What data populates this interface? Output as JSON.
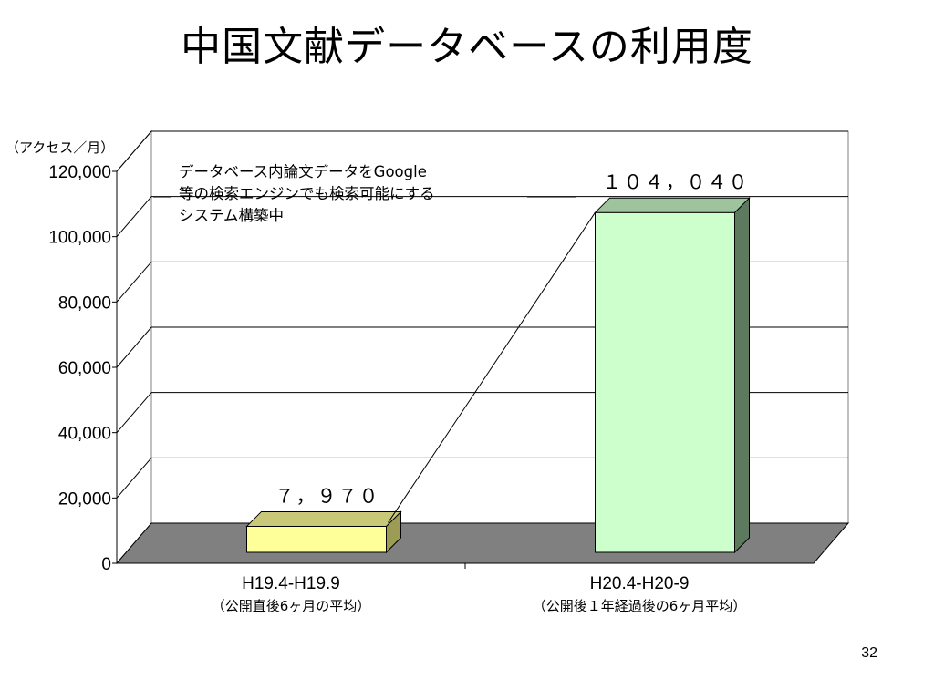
{
  "slide": {
    "title": "中国文献データベースの利用度",
    "page_number": "32"
  },
  "chart_data": {
    "type": "bar",
    "unit_label": "（アクセス／月）",
    "ylim": [
      0,
      120000
    ],
    "yticks": [
      "0",
      "20,000",
      "40,000",
      "60,000",
      "80,000",
      "100,000",
      "120,000"
    ],
    "categories": [
      "H19.4-H19.9",
      "H20.4-H20-9"
    ],
    "category_notes": [
      "（公開直後6ヶ月の平均）",
      "（公開後１年経過後の6ヶ月平均）"
    ],
    "values": [
      7970,
      104040
    ],
    "data_labels": [
      "７，９７０",
      "１０４，０４０"
    ],
    "bar_colors": [
      "#ffff99",
      "#ccffcc"
    ],
    "annotation": [
      "データベース内論文データをGoogle",
      "等の検索エンジンでも検索可能にする",
      "システム構築中"
    ],
    "grid": true,
    "style": "3d"
  }
}
